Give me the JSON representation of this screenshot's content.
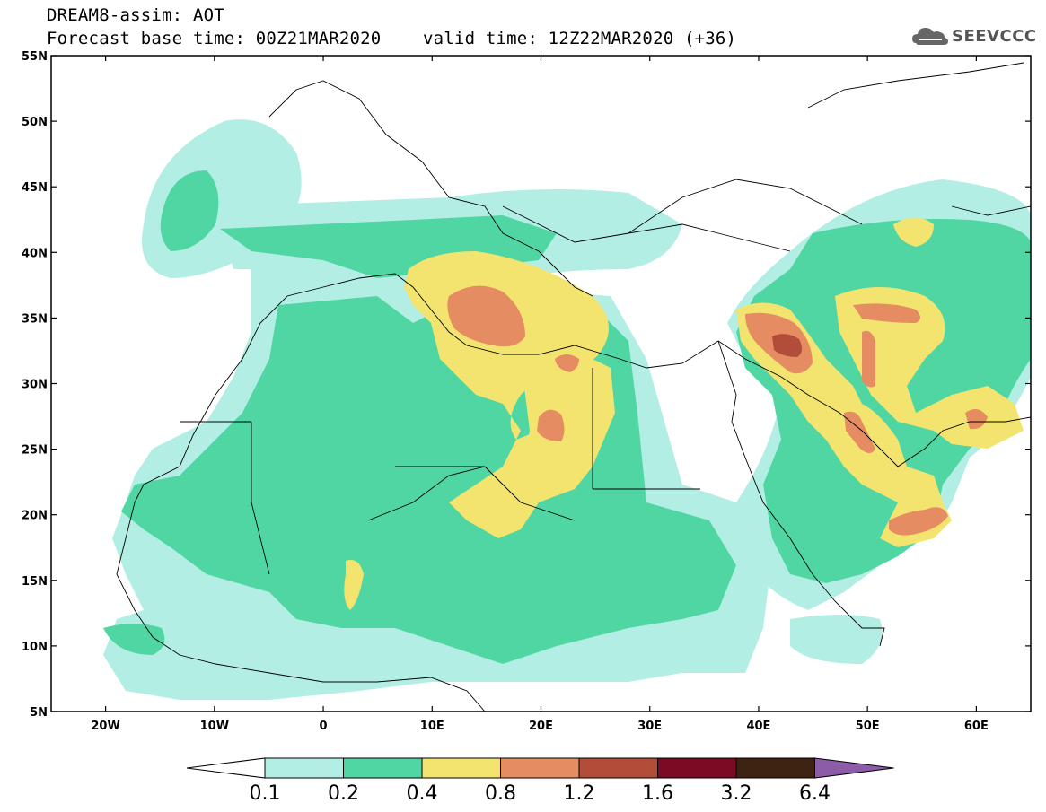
{
  "header": {
    "line1": "DREAM8-assim: AOT",
    "line2_left": "Forecast base time: 00Z21MAR2020",
    "line2_right": "valid time: 12Z22MAR2020 (+36)"
  },
  "logo": {
    "text": "SEEVCCC",
    "icon": "cloud-logo-icon"
  },
  "map": {
    "lon_range": [
      -25,
      65
    ],
    "lat_range": [
      5,
      55
    ],
    "lon_ticks": [
      "20W",
      "10W",
      "0",
      "10E",
      "20E",
      "30E",
      "40E",
      "50E",
      "60E"
    ],
    "lat_ticks": [
      "55N",
      "50N",
      "45N",
      "40N",
      "35N",
      "30N",
      "25N",
      "20N",
      "15N",
      "10N",
      "5N"
    ],
    "variable": "AOT"
  },
  "colorbar": {
    "levels": [
      "0.1",
      "0.2",
      "0.4",
      "0.8",
      "1.2",
      "1.6",
      "3.2",
      "6.4"
    ],
    "colors": [
      "#ffffff",
      "#b3eee4",
      "#50d6a3",
      "#f3e470",
      "#e58c62",
      "#b24d3a",
      "#7c0a25",
      "#3e2212",
      "#8c5ca8"
    ]
  }
}
